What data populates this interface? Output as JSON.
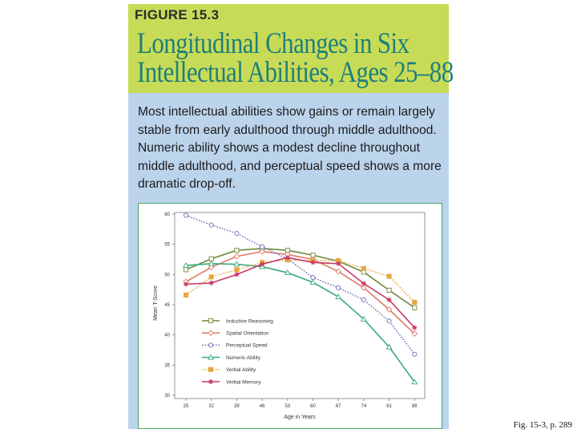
{
  "figure": {
    "label": "FIGURE 15.3",
    "title_line1": "Longitudinal Changes in Six",
    "title_line2": "Intellectual Abilities, Ages 25–88",
    "caption": "Most intellectual abilities show gains or remain largely stable from early adulthood through middle adulthood. Numeric ability shows a modest decline throughout middle adulthood, and perceptual speed shows a more dramatic drop-off.",
    "source_note": "Fig. 15-3, p. 289"
  },
  "colors": {
    "header_green": "#c8db57",
    "title_teal": "#1d7f7a",
    "panel_blue": "#bcd3ec",
    "chart_border": "#4aa564"
  },
  "chart_data": {
    "type": "line",
    "xlabel": "Age in Years",
    "ylabel": "Mean T-Score",
    "ylim": [
      30,
      60
    ],
    "yticks": [
      30,
      35,
      40,
      45,
      50,
      55,
      60
    ],
    "categories": [
      "25",
      "32",
      "39",
      "46",
      "53",
      "60",
      "67",
      "74",
      "81",
      "88"
    ],
    "grid": false,
    "legend_position": "lower-left",
    "series": [
      {
        "name": "Inductive Reasoning",
        "color": "#6e8a3a",
        "marker": "square",
        "dash": "solid",
        "values": [
          50.8,
          52.6,
          54.0,
          54.3,
          54.0,
          53.2,
          52.2,
          50.4,
          47.4,
          44.5
        ]
      },
      {
        "name": "Spatial Orientation",
        "color": "#e07a68",
        "marker": "diamond",
        "dash": "solid",
        "values": [
          48.8,
          51.2,
          53.0,
          53.8,
          53.3,
          52.5,
          50.5,
          47.8,
          44.2,
          40.2
        ]
      },
      {
        "name": "Perceptual Speed",
        "color": "#6f72b8",
        "marker": "circle",
        "dash": "dotted",
        "values": [
          59.8,
          58.2,
          56.8,
          54.6,
          52.6,
          49.5,
          47.8,
          45.8,
          42.3,
          36.8
        ]
      },
      {
        "name": "Numeric Ability",
        "color": "#3bab79",
        "marker": "triangle",
        "dash": "solid",
        "values": [
          51.5,
          51.8,
          51.7,
          51.3,
          50.3,
          48.7,
          46.3,
          42.6,
          38.0,
          32.2
        ]
      },
      {
        "name": "Verbal Ability",
        "color": "#e9a640",
        "marker": "square-filled",
        "dash": "dotted",
        "values": [
          46.6,
          49.6,
          50.8,
          52.0,
          52.4,
          52.3,
          52.3,
          51.0,
          49.7,
          45.4
        ]
      },
      {
        "name": "Verbal Memory",
        "color": "#c63a63",
        "marker": "star",
        "dash": "solid",
        "values": [
          48.4,
          48.6,
          50.0,
          51.7,
          52.8,
          52.0,
          51.8,
          48.5,
          45.8,
          41.2
        ]
      }
    ]
  }
}
